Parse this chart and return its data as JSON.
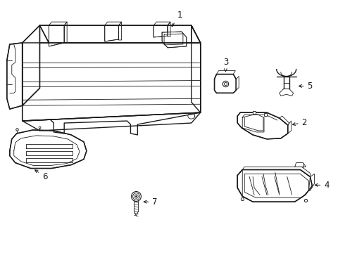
{
  "bg_color": "#ffffff",
  "line_color": "#1a1a1a",
  "lw_main": 1.0,
  "lw_thin": 0.6,
  "label_fontsize": 8.5
}
